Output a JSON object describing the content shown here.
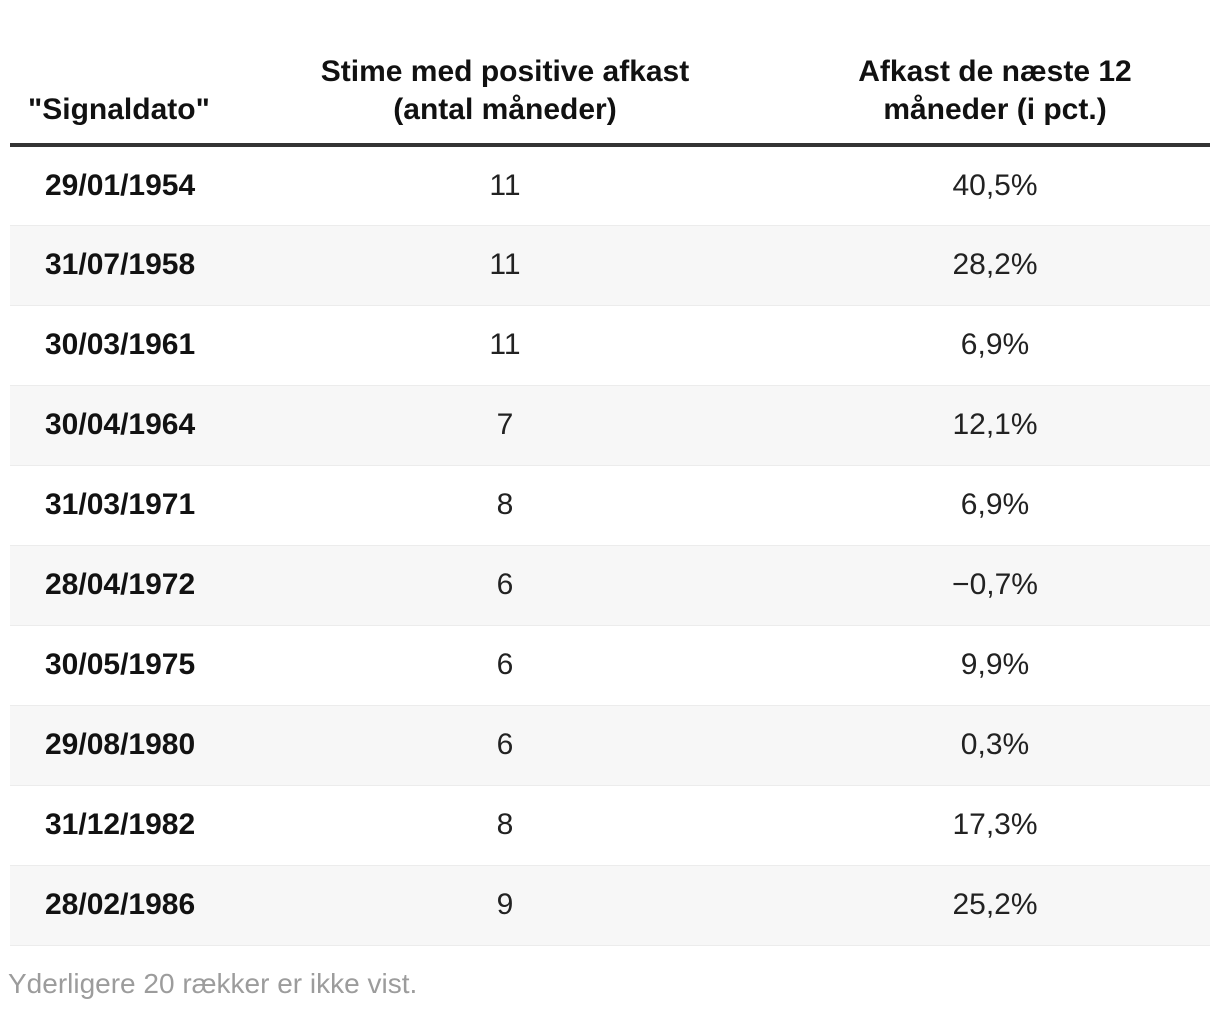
{
  "table": {
    "header": {
      "col1": "\"Signaldato\"",
      "col2_line1": "Stime med positive afkast",
      "col2_line2": "(antal måneder)",
      "col3_line1": "Afkast de næste 12",
      "col3_line2": "måneder (i pct.)"
    },
    "rows": [
      {
        "date": "29/01/1954",
        "months": "11",
        "pct": "40,5%"
      },
      {
        "date": "31/07/1958",
        "months": "11",
        "pct": "28,2%"
      },
      {
        "date": "30/03/1961",
        "months": "11",
        "pct": "6,9%"
      },
      {
        "date": "30/04/1964",
        "months": "7",
        "pct": "12,1%"
      },
      {
        "date": "31/03/1971",
        "months": "8",
        "pct": "6,9%"
      },
      {
        "date": "28/04/1972",
        "months": "6",
        "pct": "−0,7%"
      },
      {
        "date": "30/05/1975",
        "months": "6",
        "pct": "9,9%"
      },
      {
        "date": "29/08/1980",
        "months": "6",
        "pct": "0,3%"
      },
      {
        "date": "31/12/1982",
        "months": "8",
        "pct": "17,3%"
      },
      {
        "date": "28/02/1986",
        "months": "9",
        "pct": "25,2%"
      }
    ],
    "footnote": "Yderligere 20 rækker er ikke vist."
  },
  "colors": {
    "divider": "#343434",
    "stripe": "#f7f7f7",
    "stripe_border": "#ececec",
    "footnote_text": "#9c9c9c"
  },
  "chart_data": {
    "type": "table",
    "title": "",
    "columns": [
      "\"Signaldato\"",
      "Stime med positive afkast (antal måneder)",
      "Afkast de næste 12 måneder (i pct.)"
    ],
    "rows": [
      [
        "29/01/1954",
        11,
        "40,5%"
      ],
      [
        "31/07/1958",
        11,
        "28,2%"
      ],
      [
        "30/03/1961",
        11,
        "6,9%"
      ],
      [
        "30/04/1964",
        7,
        "12,1%"
      ],
      [
        "31/03/1971",
        8,
        "6,9%"
      ],
      [
        "28/04/1972",
        6,
        "−0,7%"
      ],
      [
        "30/05/1975",
        6,
        "9,9%"
      ],
      [
        "29/08/1980",
        6,
        "0,3%"
      ],
      [
        "31/12/1982",
        8,
        "17,3%"
      ],
      [
        "28/02/1986",
        9,
        "25,2%"
      ]
    ],
    "note": "Yderligere 20 rækker er ikke vist.",
    "layout_hints": {
      "zebra_striping": true,
      "col1_align": "left",
      "col2_align": "center",
      "col3_align": "center"
    }
  }
}
